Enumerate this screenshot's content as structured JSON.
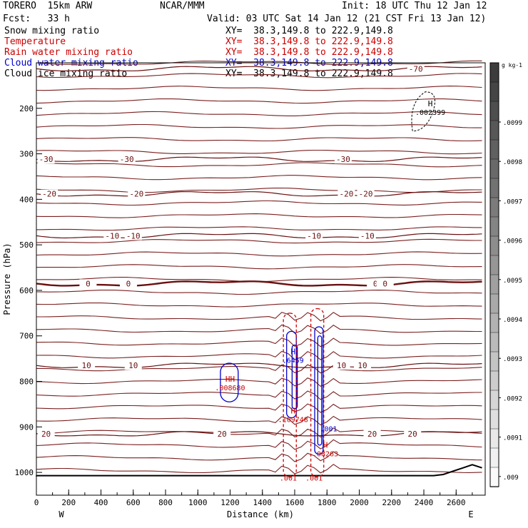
{
  "header": {
    "model": "TORERO  15km ARW",
    "org": "NCAR/MMM",
    "init": "Init: 18 UTC Thu 12 Jan 12",
    "fcst": "Fcst:   33 h",
    "valid": "Valid: 03 UTC Sat 14 Jan 12 (21 CST Fri 13 Jan 12)"
  },
  "fields": [
    {
      "name": "Snow mixing ratio",
      "xy": "XY=  38.3,149.8 to 222.9,149.8",
      "color": "#000000",
      "xy_color": "#000000"
    },
    {
      "name": "Temperature",
      "xy": "XY=  38.3,149.8 to 222.9,149.8",
      "color": "#cc0000",
      "xy_color": "#cc0000"
    },
    {
      "name": "Rain water mixing ratio",
      "xy": "XY=  38.3,149.8 to 222.9,149.8",
      "color": "#cc0000",
      "xy_color": "#cc0000"
    },
    {
      "name": "Cloud water mixing ratio",
      "xy": "XY=  38.3,149.8 to 222.9,149.8",
      "color": "#0000cc",
      "xy_color": "#0000cc"
    },
    {
      "name": "Cloud ice mixing ratio",
      "xy": "XY=  38.3,149.8 to 222.9,149.8",
      "color": "#000000",
      "xy_color": "#000000"
    }
  ],
  "chart_data": {
    "type": "line",
    "xlabel": "Distance (km)",
    "ylabel": "Pressure (hPa)",
    "xlim": [
      0,
      2780
    ],
    "ylim": [
      1050,
      100
    ],
    "x_ticks": [
      0,
      200,
      400,
      600,
      800,
      1000,
      1200,
      1400,
      1600,
      1800,
      2000,
      2200,
      2400,
      2600
    ],
    "y_ticks": [
      200,
      300,
      400,
      500,
      600,
      700,
      800,
      900,
      1000
    ],
    "x_end_labels": [
      "W",
      "E"
    ],
    "isotherms": [
      {
        "temp": -70,
        "p": 113,
        "labels": [
          {
            "text": "-70",
            "x": 2350
          }
        ]
      },
      {
        "temp": -30,
        "p": 312,
        "labels": [
          {
            "text": "-30",
            "x": 60
          },
          {
            "text": "-30",
            "x": 560
          },
          {
            "text": "-30",
            "x": 1900
          }
        ]
      },
      {
        "temp": -20,
        "p": 388,
        "labels": [
          {
            "text": "-20",
            "x": 80
          },
          {
            "text": "-20",
            "x": 620
          },
          {
            "text": "-20",
            "x": 1920
          },
          {
            "text": "-20",
            "x": 2040
          }
        ]
      },
      {
        "temp": -10,
        "p": 480,
        "labels": [
          {
            "text": "-10",
            "x": 470
          },
          {
            "text": "-10",
            "x": 600
          },
          {
            "text": "-10",
            "x": 1720
          },
          {
            "text": "-10",
            "x": 2050
          }
        ]
      },
      {
        "temp": 0,
        "p": 585,
        "labels": [
          {
            "text": "0",
            "x": 320
          },
          {
            "text": "0",
            "x": 570
          },
          {
            "text": "0",
            "x": 2100
          },
          {
            "text": "0",
            "x": 2160
          }
        ]
      },
      {
        "temp": 10,
        "p": 765,
        "labels": [
          {
            "text": "10",
            "x": 310
          },
          {
            "text": "10",
            "x": 600
          },
          {
            "text": "10",
            "x": 1890
          },
          {
            "text": "10",
            "x": 2020
          }
        ]
      },
      {
        "temp": 20,
        "p": 915,
        "labels": [
          {
            "text": "20",
            "x": 60
          },
          {
            "text": "20",
            "x": 1150
          },
          {
            "text": "20",
            "x": 2080
          },
          {
            "text": "20",
            "x": 2330
          }
        ]
      }
    ],
    "extrema_labels": [
      {
        "text": "H",
        "value": ".002399",
        "x": 2440,
        "p": 205,
        "color": "#000000"
      },
      {
        "text": "H",
        "value": ".6459",
        "x": 1590,
        "p": 750,
        "color": "#0000cc"
      },
      {
        "text": "HH",
        "value": ".008680",
        "x": 1200,
        "p": 810,
        "color": "#cc0000"
      },
      {
        "text": "H",
        "value": ".109748",
        "x": 1590,
        "p": 880,
        "color": "#cc0000"
      },
      {
        "text": "H",
        "value": ".08263",
        "x": 1790,
        "p": 955,
        "color": "#cc0000"
      }
    ],
    "contour_labels": [
      {
        "text": ".001",
        "x": 1810,
        "p": 910,
        "color": "#0000cc"
      },
      {
        "text": ".001",
        "x": 1560,
        "p": 1018,
        "color": "#cc0000"
      },
      {
        "text": ".001",
        "x": 1720,
        "p": 1018,
        "color": "#cc0000"
      }
    ],
    "colorbar": {
      "unit": "g kg-1",
      "tick_labels": [
        ".0099",
        ".0098",
        ".0097",
        ".0096",
        ".0095",
        ".0094",
        ".0093",
        ".0092",
        ".0091",
        ".009"
      ]
    }
  }
}
